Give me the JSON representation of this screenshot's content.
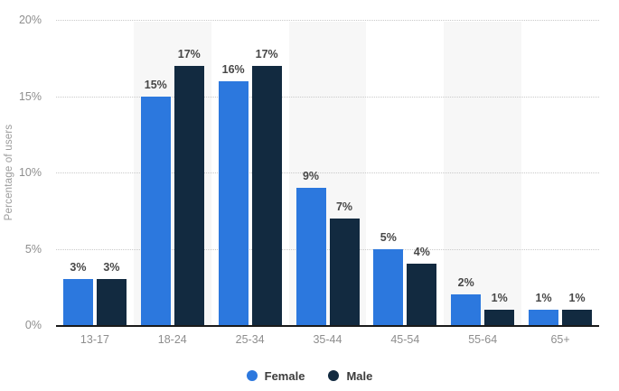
{
  "chart_data": {
    "type": "bar",
    "title": "",
    "ylabel": "Percentage of users",
    "xlabel": "",
    "categories": [
      "13-17",
      "18-24",
      "25-34",
      "35-44",
      "45-54",
      "55-64",
      "65+"
    ],
    "series": [
      {
        "name": "Female",
        "color": "#2c78de",
        "values": [
          3,
          15,
          16,
          9,
          5,
          2,
          1
        ]
      },
      {
        "name": "Male",
        "color": "#122a40",
        "values": [
          3,
          17,
          17,
          7,
          4,
          1,
          1
        ]
      }
    ],
    "value_labels": {
      "Female": [
        "3%",
        "15%",
        "16%",
        "9%",
        "5%",
        "2%",
        "1%"
      ],
      "Male": [
        "3%",
        "17%",
        "17%",
        "7%",
        "4%",
        "1%",
        "1%"
      ]
    },
    "ylim": [
      0,
      20
    ],
    "yticks": [
      0,
      5,
      10,
      15,
      20
    ],
    "ytick_labels": [
      "0%",
      "5%",
      "10%",
      "15%",
      "20%"
    ],
    "grid": "horizontal-dotted",
    "plot_band_columns": [
      "18-24",
      "35-44",
      "55-64"
    ],
    "plot_band_color": "#f7f7f7",
    "legend_position": "bottom-center",
    "axis_line_color": "#1a1a1a",
    "gridline_color": "#c9c9c9",
    "tick_label_color": "#8e8e8e",
    "value_label_color": "#474747"
  }
}
